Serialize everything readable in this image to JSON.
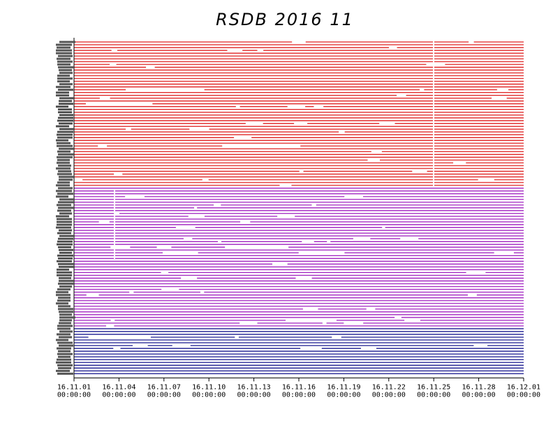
{
  "chart_data": {
    "type": "line",
    "title": "RSDB  2016  11",
    "xlabel": "",
    "ylabel": "",
    "x_tick_labels": [
      {
        "date": "16.11.01",
        "time": "00:00:00"
      },
      {
        "date": "16.11.04",
        "time": "00:00:00"
      },
      {
        "date": "16.11.07",
        "time": "00:00:00"
      },
      {
        "date": "16.11.10",
        "time": "00:00:00"
      },
      {
        "date": "16.11.13",
        "time": "00:00:00"
      },
      {
        "date": "16.11.16",
        "time": "00:00:00"
      },
      {
        "date": "16.11.19",
        "time": "00:00:00"
      },
      {
        "date": "16.11.22",
        "time": "00:00:00"
      },
      {
        "date": "16.11.25",
        "time": "00:00:00"
      },
      {
        "date": "16.11.28",
        "time": "00:00:00"
      },
      {
        "date": "16.12.01",
        "time": "00:00:00"
      }
    ],
    "xlim": [
      "2016-11-01",
      "2016-12-01"
    ],
    "grid": false,
    "legend": "none",
    "series_groups": [
      {
        "color": "#e02020",
        "rows": 52
      },
      {
        "color": "#a020c0",
        "rows": 50
      },
      {
        "color": "#1a1a90",
        "rows": 17
      }
    ]
  }
}
